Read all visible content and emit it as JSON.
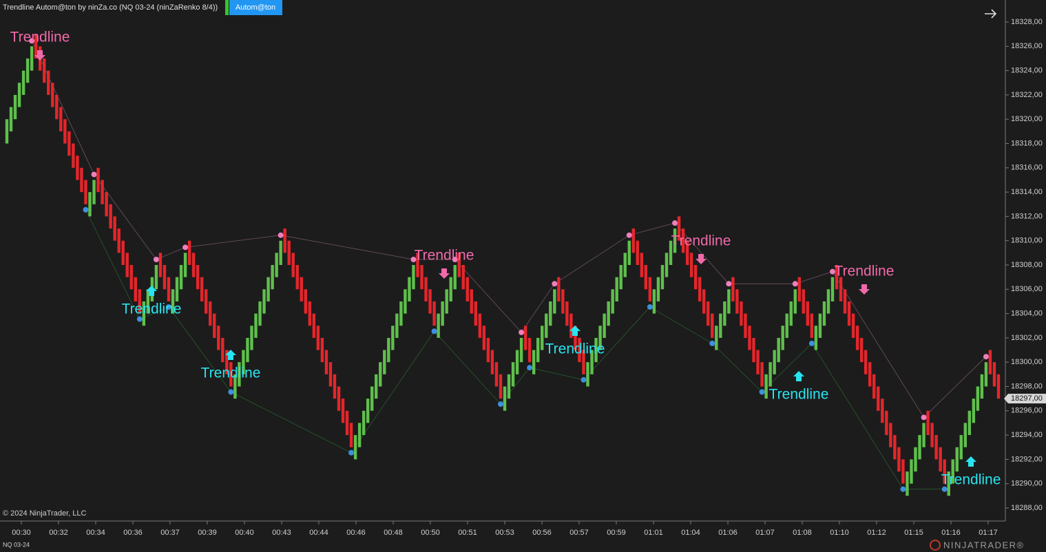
{
  "chart_data": {
    "type": "candlestick",
    "title": "Trendline Autom@ton by ninZa.co (NQ 03-24 (ninZaRenko 8/4))",
    "button": "Autom@ton",
    "copyright": "© 2024 NinjaTrader, LLC",
    "instrument": "NQ 03-24",
    "brand": "NINJATRADER®",
    "up_color": "#5fc04c",
    "down_color": "#e5262b",
    "high_color": "#ee7fbd",
    "low_color": "#3d8fe0",
    "close": [
      18320,
      18321,
      18322,
      18323,
      18324,
      18325,
      18326,
      18325,
      18324,
      18323,
      18322,
      18321,
      18320,
      18319,
      18318,
      18317,
      18316,
      18315,
      18314,
      18313,
      18314,
      18315,
      18314,
      18313,
      18312,
      18311,
      18310,
      18309,
      18308,
      18307,
      18306,
      18305,
      18304,
      18305,
      18306,
      18307,
      18308,
      18307,
      18306,
      18305,
      18306,
      18307,
      18308,
      18309,
      18308,
      18307,
      18306,
      18305,
      18304,
      18303,
      18302,
      18301,
      18300,
      18299,
      18298,
      18299,
      18300,
      18301,
      18302,
      18303,
      18304,
      18305,
      18306,
      18307,
      18308,
      18309,
      18310,
      18309,
      18308,
      18307,
      18306,
      18305,
      18304,
      18303,
      18302,
      18301,
      18300,
      18299,
      18298,
      18297,
      18296,
      18295,
      18294,
      18293,
      18294,
      18295,
      18296,
      18297,
      18298,
      18299,
      18300,
      18301,
      18302,
      18303,
      18304,
      18305,
      18306,
      18307,
      18308,
      18307,
      18306,
      18305,
      18304,
      18303,
      18304,
      18305,
      18306,
      18307,
      18308,
      18307,
      18306,
      18305,
      18304,
      18303,
      18302,
      18301,
      18300,
      18299,
      18298,
      18297,
      18298,
      18299,
      18300,
      18301,
      18302,
      18301,
      18300,
      18301,
      18302,
      18303,
      18304,
      18305,
      18306,
      18305,
      18304,
      18303,
      18302,
      18301,
      18300,
      18299,
      18300,
      18301,
      18302,
      18303,
      18304,
      18305,
      18306,
      18307,
      18308,
      18309,
      18310,
      18309,
      18308,
      18307,
      18306,
      18305,
      18306,
      18307,
      18308,
      18309,
      18310,
      18311,
      18310,
      18309,
      18308,
      18307,
      18306,
      18305,
      18304,
      18303,
      18302,
      18303,
      18304,
      18305,
      18306,
      18305,
      18304,
      18303,
      18302,
      18301,
      18300,
      18299,
      18298,
      18299,
      18300,
      18301,
      18302,
      18303,
      18304,
      18305,
      18306,
      18305,
      18304,
      18303,
      18302,
      18303,
      18304,
      18305,
      18306,
      18307,
      18306,
      18305,
      18304,
      18303,
      18302,
      18301,
      18300,
      18299,
      18298,
      18297,
      18296,
      18295,
      18294,
      18293,
      18292,
      18291,
      18290,
      18291,
      18292,
      18293,
      18294,
      18295,
      18294,
      18293,
      18292,
      18291,
      18290,
      18291,
      18292,
      18293,
      18294,
      18295,
      18296,
      18297,
      18298,
      18299,
      18300,
      18299,
      18298,
      18297
    ],
    "open": [
      18318,
      18319,
      18320,
      18321,
      18322,
      18323,
      18324,
      18327,
      18326,
      18325,
      18324,
      18323,
      18322,
      18321,
      18320,
      18319,
      18318,
      18317,
      18316,
      18315,
      18312,
      18313,
      18316,
      18315,
      18314,
      18313,
      18312,
      18311,
      18310,
      18309,
      18308,
      18307,
      18306,
      18303,
      18304,
      18305,
      18306,
      18309,
      18308,
      18307,
      18304,
      18305,
      18306,
      18307,
      18310,
      18309,
      18308,
      18307,
      18306,
      18305,
      18304,
      18303,
      18302,
      18301,
      18300,
      18297,
      18298,
      18299,
      18300,
      18301,
      18302,
      18303,
      18304,
      18305,
      18306,
      18307,
      18308,
      18311,
      18310,
      18309,
      18308,
      18307,
      18306,
      18305,
      18304,
      18303,
      18302,
      18301,
      18300,
      18299,
      18298,
      18297,
      18296,
      18295,
      18292,
      18293,
      18294,
      18295,
      18296,
      18297,
      18298,
      18299,
      18300,
      18301,
      18302,
      18303,
      18304,
      18305,
      18306,
      18309,
      18308,
      18307,
      18306,
      18305,
      18302,
      18303,
      18304,
      18305,
      18306,
      18309,
      18308,
      18307,
      18306,
      18305,
      18304,
      18303,
      18302,
      18301,
      18300,
      18299,
      18296,
      18297,
      18298,
      18299,
      18300,
      18303,
      18302,
      18299,
      18300,
      18301,
      18302,
      18303,
      18304,
      18307,
      18306,
      18305,
      18304,
      18303,
      18302,
      18301,
      18298,
      18299,
      18300,
      18301,
      18302,
      18303,
      18304,
      18305,
      18306,
      18307,
      18308,
      18311,
      18310,
      18309,
      18308,
      18307,
      18304,
      18305,
      18306,
      18307,
      18308,
      18309,
      18312,
      18311,
      18310,
      18309,
      18308,
      18307,
      18306,
      18305,
      18304,
      18301,
      18302,
      18303,
      18304,
      18307,
      18306,
      18305,
      18304,
      18303,
      18302,
      18301,
      18300,
      18297,
      18298,
      18299,
      18300,
      18301,
      18302,
      18303,
      18304,
      18307,
      18306,
      18305,
      18304,
      18301,
      18302,
      18303,
      18304,
      18305,
      18308,
      18307,
      18306,
      18305,
      18304,
      18303,
      18302,
      18301,
      18300,
      18299,
      18298,
      18297,
      18296,
      18295,
      18294,
      18293,
      18292,
      18289,
      18290,
      18291,
      18292,
      18293,
      18296,
      18295,
      18294,
      18293,
      18292,
      18289,
      18290,
      18291,
      18292,
      18293,
      18294,
      18295,
      18296,
      18297,
      18298,
      18301,
      18300,
      18299
    ],
    "ylim": [
      18288,
      18328
    ],
    "yticks": [
      {
        "value": 18288,
        "label": "18288,00"
      },
      {
        "value": 18290,
        "label": "18290,00"
      },
      {
        "value": 18292,
        "label": "18292,00"
      },
      {
        "value": 18294,
        "label": "18294,00"
      },
      {
        "value": 18296,
        "label": "18296,00"
      },
      {
        "value": 18298,
        "label": "18298,00"
      },
      {
        "value": 18300,
        "label": "18300,00"
      },
      {
        "value": 18302,
        "label": "18302,00"
      },
      {
        "value": 18304,
        "label": "18304,00"
      },
      {
        "value": 18306,
        "label": "18306,00"
      },
      {
        "value": 18308,
        "label": "18308,00"
      },
      {
        "value": 18310,
        "label": "18310,00"
      },
      {
        "value": 18312,
        "label": "18312,00"
      },
      {
        "value": 18314,
        "label": "18314,00"
      },
      {
        "value": 18316,
        "label": "18316,00"
      },
      {
        "value": 18318,
        "label": "18318,00"
      },
      {
        "value": 18320,
        "label": "18320,00"
      },
      {
        "value": 18322,
        "label": "18322,00"
      },
      {
        "value": 18324,
        "label": "18324,00"
      },
      {
        "value": 18326,
        "label": "18326,00"
      },
      {
        "value": 18328,
        "label": "18328,00"
      }
    ],
    "x_labels": [
      "00:30",
      "00:32",
      "00:34",
      "00:36",
      "00:37",
      "00:39",
      "00:40",
      "00:43",
      "00:44",
      "00:46",
      "00:48",
      "00:50",
      "00:51",
      "00:53",
      "00:56",
      "00:57",
      "00:59",
      "01:01",
      "01:04",
      "01:06",
      "01:07",
      "01:08",
      "01:10",
      "01:12",
      "01:15",
      "01:16",
      "01:17"
    ],
    "last_price": {
      "value": 18297,
      "label": "18297,00"
    },
    "annotations": [
      {
        "text": "Trendline",
        "color": "#f06aaa",
        "direction": "down"
      },
      {
        "text": "Trendline",
        "color": "#29e3f0",
        "direction": "up"
      },
      {
        "text": "Trendline",
        "color": "#29e3f0",
        "direction": "up"
      },
      {
        "text": "Trendline",
        "color": "#f06aaa",
        "direction": "down"
      },
      {
        "text": "Trendline",
        "color": "#29e3f0",
        "direction": "up"
      },
      {
        "text": "Trendline",
        "color": "#f06aaa",
        "direction": "down"
      },
      {
        "text": "Trendline",
        "color": "#29e3f0",
        "direction": "up"
      },
      {
        "text": "Trendline",
        "color": "#f06aaa",
        "direction": "down"
      },
      {
        "text": "Trendline",
        "color": "#29e3f0",
        "direction": "up"
      }
    ]
  }
}
